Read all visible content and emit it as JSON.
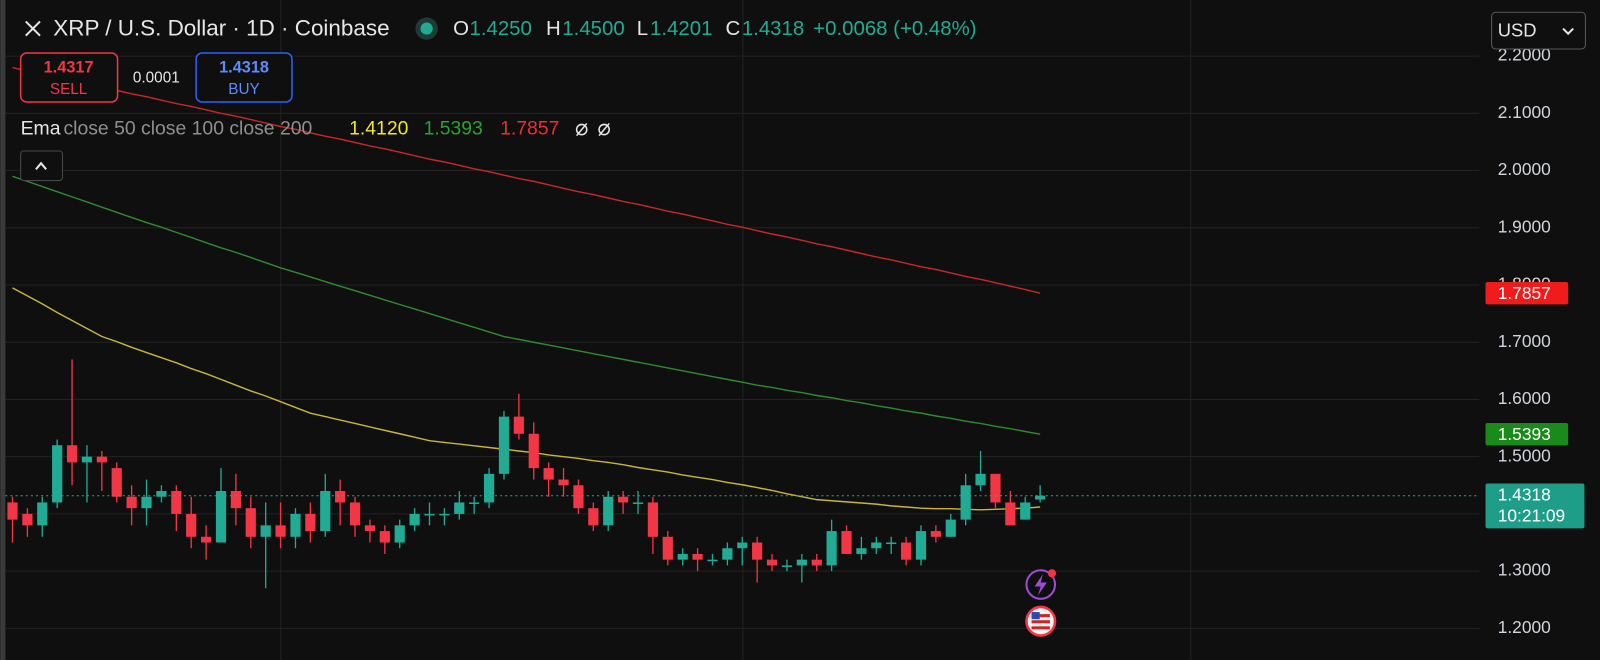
{
  "header": {
    "symbol": "XRP / U.S. Dollar · 1D · Coinbase",
    "ohlc": [
      {
        "label": "O",
        "value": "1.4250"
      },
      {
        "label": "H",
        "value": "1.4500"
      },
      {
        "label": "L",
        "value": "1.4201"
      },
      {
        "label": "C",
        "value": "1.4318"
      }
    ],
    "change": "+0.0068 (+0.48%)"
  },
  "trade": {
    "sell_price": "1.4317",
    "sell_label": "SELL",
    "spread": "0.0001",
    "buy_price": "1.4318",
    "buy_label": "BUY"
  },
  "indicator": {
    "name": "Ema",
    "params": "close 50 close 100 close 200",
    "values": [
      "1.4120",
      "1.5393",
      "1.7857"
    ]
  },
  "currency": "USD",
  "price_tag": {
    "price": "1.4318",
    "countdown": "10:21:09"
  },
  "chart_data": {
    "type": "candlestick",
    "open": [
      1.42,
      1.4,
      1.38,
      1.42,
      1.52,
      1.49,
      1.5,
      1.48,
      1.43,
      1.41,
      1.43,
      1.44,
      1.4,
      1.36,
      1.35,
      1.44,
      1.41,
      1.36,
      1.38,
      1.36,
      1.4,
      1.37,
      1.44,
      1.42,
      1.38,
      1.37,
      1.35,
      1.38,
      1.4,
      1.4,
      1.4,
      1.42,
      1.42,
      1.47,
      1.57,
      1.54,
      1.48,
      1.46,
      1.45,
      1.41,
      1.38,
      1.43,
      1.42,
      1.42,
      1.36,
      1.32,
      1.33,
      1.32,
      1.32,
      1.34,
      1.35,
      1.32,
      1.31,
      1.31,
      1.32,
      1.31,
      1.37,
      1.33,
      1.34,
      1.35,
      1.35,
      1.32,
      1.37,
      1.36,
      1.39,
      1.45,
      1.47,
      1.42,
      1.39,
      1.425
    ],
    "high": [
      1.43,
      1.41,
      1.43,
      1.53,
      1.67,
      1.52,
      1.51,
      1.49,
      1.45,
      1.46,
      1.45,
      1.45,
      1.43,
      1.38,
      1.48,
      1.47,
      1.43,
      1.42,
      1.42,
      1.41,
      1.42,
      1.47,
      1.46,
      1.43,
      1.39,
      1.38,
      1.39,
      1.41,
      1.42,
      1.41,
      1.44,
      1.43,
      1.48,
      1.58,
      1.61,
      1.56,
      1.49,
      1.48,
      1.46,
      1.42,
      1.44,
      1.44,
      1.44,
      1.43,
      1.37,
      1.34,
      1.34,
      1.33,
      1.35,
      1.36,
      1.36,
      1.33,
      1.32,
      1.33,
      1.33,
      1.39,
      1.38,
      1.36,
      1.36,
      1.36,
      1.36,
      1.38,
      1.38,
      1.4,
      1.47,
      1.51,
      1.47,
      1.44,
      1.43,
      1.45
    ],
    "low": [
      1.35,
      1.36,
      1.36,
      1.41,
      1.45,
      1.42,
      1.44,
      1.42,
      1.38,
      1.38,
      1.42,
      1.37,
      1.34,
      1.32,
      1.35,
      1.38,
      1.34,
      1.27,
      1.34,
      1.34,
      1.35,
      1.36,
      1.38,
      1.36,
      1.35,
      1.33,
      1.34,
      1.37,
      1.38,
      1.38,
      1.39,
      1.4,
      1.41,
      1.46,
      1.53,
      1.46,
      1.43,
      1.43,
      1.4,
      1.37,
      1.37,
      1.4,
      1.4,
      1.33,
      1.31,
      1.31,
      1.3,
      1.31,
      1.31,
      1.31,
      1.28,
      1.3,
      1.3,
      1.28,
      1.3,
      1.3,
      1.33,
      1.32,
      1.33,
      1.33,
      1.31,
      1.31,
      1.35,
      1.36,
      1.38,
      1.44,
      1.41,
      1.38,
      1.39,
      1.4201
    ],
    "close": [
      1.39,
      1.38,
      1.42,
      1.52,
      1.49,
      1.5,
      1.49,
      1.43,
      1.41,
      1.43,
      1.44,
      1.4,
      1.36,
      1.35,
      1.44,
      1.41,
      1.36,
      1.38,
      1.36,
      1.4,
      1.37,
      1.44,
      1.42,
      1.38,
      1.37,
      1.35,
      1.38,
      1.4,
      1.4,
      1.4,
      1.42,
      1.42,
      1.47,
      1.57,
      1.54,
      1.48,
      1.46,
      1.45,
      1.41,
      1.38,
      1.43,
      1.42,
      1.42,
      1.36,
      1.32,
      1.33,
      1.32,
      1.32,
      1.34,
      1.35,
      1.32,
      1.31,
      1.31,
      1.32,
      1.31,
      1.37,
      1.33,
      1.34,
      1.35,
      1.35,
      1.32,
      1.37,
      1.36,
      1.39,
      1.45,
      1.47,
      1.42,
      1.38,
      1.42,
      1.4318
    ],
    "up_color": "#22ab94",
    "down_color": "#f23645",
    "series": [
      {
        "color": "#c9b53c",
        "values": [
          1.795,
          1.781,
          1.767,
          1.752,
          1.738,
          1.724,
          1.71,
          1.701,
          1.691,
          1.682,
          1.673,
          1.664,
          1.654,
          1.645,
          1.635,
          1.625,
          1.615,
          1.606,
          1.596,
          1.586,
          1.576,
          1.57,
          1.564,
          1.558,
          1.552,
          1.546,
          1.54,
          1.534,
          1.528,
          1.525,
          1.522,
          1.519,
          1.516,
          1.513,
          1.51,
          1.507,
          1.503,
          1.5,
          1.497,
          1.493,
          1.49,
          1.486,
          1.481,
          1.477,
          1.473,
          1.468,
          1.464,
          1.46,
          1.455,
          1.451,
          1.446,
          1.441,
          1.435,
          1.43,
          1.425,
          1.423,
          1.421,
          1.419,
          1.417,
          1.414,
          1.412,
          1.41,
          1.409,
          1.409,
          1.408,
          1.407,
          1.408,
          1.409,
          1.41,
          1.412
        ]
      },
      {
        "color": "#2e8b2e",
        "values": [
          1.99,
          1.981,
          1.972,
          1.963,
          1.954,
          1.945,
          1.936,
          1.927,
          1.918,
          1.909,
          1.901,
          1.892,
          1.883,
          1.874,
          1.865,
          1.857,
          1.848,
          1.839,
          1.83,
          1.822,
          1.814,
          1.806,
          1.798,
          1.79,
          1.782,
          1.774,
          1.766,
          1.758,
          1.75,
          1.742,
          1.734,
          1.726,
          1.718,
          1.71,
          1.705,
          1.7,
          1.695,
          1.69,
          1.685,
          1.68,
          1.675,
          1.67,
          1.665,
          1.66,
          1.655,
          1.65,
          1.645,
          1.64,
          1.635,
          1.63,
          1.625,
          1.621,
          1.616,
          1.612,
          1.607,
          1.603,
          1.598,
          1.594,
          1.589,
          1.585,
          1.58,
          1.576,
          1.571,
          1.567,
          1.562,
          1.558,
          1.553,
          1.549,
          1.544,
          1.5393
        ]
      },
      {
        "color": "#c62828",
        "values": [
          2.18,
          2.174,
          2.169,
          2.163,
          2.157,
          2.152,
          2.146,
          2.14,
          2.134,
          2.129,
          2.123,
          2.117,
          2.112,
          2.106,
          2.1,
          2.095,
          2.089,
          2.083,
          2.077,
          2.072,
          2.066,
          2.06,
          2.055,
          2.049,
          2.043,
          2.038,
          2.032,
          2.026,
          2.02,
          2.015,
          2.009,
          2.003,
          1.998,
          1.992,
          1.986,
          1.981,
          1.975,
          1.969,
          1.963,
          1.958,
          1.952,
          1.946,
          1.941,
          1.935,
          1.929,
          1.924,
          1.918,
          1.912,
          1.906,
          1.901,
          1.895,
          1.889,
          1.884,
          1.878,
          1.872,
          1.867,
          1.861,
          1.855,
          1.849,
          1.844,
          1.838,
          1.832,
          1.827,
          1.821,
          1.815,
          1.81,
          1.804,
          1.798,
          1.792,
          1.7857
        ]
      }
    ],
    "ylim": [
      1.1447,
      2.298
    ],
    "yticks": [
      {
        "value": 1.2,
        "label": "1.2000"
      },
      {
        "value": 1.3,
        "label": "1.3000"
      },
      {
        "value": 1.4,
        "label": "1.4000"
      },
      {
        "value": 1.5,
        "label": "1.5000"
      },
      {
        "value": 1.6,
        "label": "1.6000"
      },
      {
        "value": 1.7,
        "label": "1.7000"
      },
      {
        "value": 1.8,
        "label": "1.8000"
      },
      {
        "value": 1.9,
        "label": "1.9000"
      },
      {
        "value": 2.0,
        "label": "2.0000"
      },
      {
        "value": 2.1,
        "label": "2.1000"
      },
      {
        "value": 2.2,
        "label": "2.2000"
      }
    ],
    "grid": true
  }
}
